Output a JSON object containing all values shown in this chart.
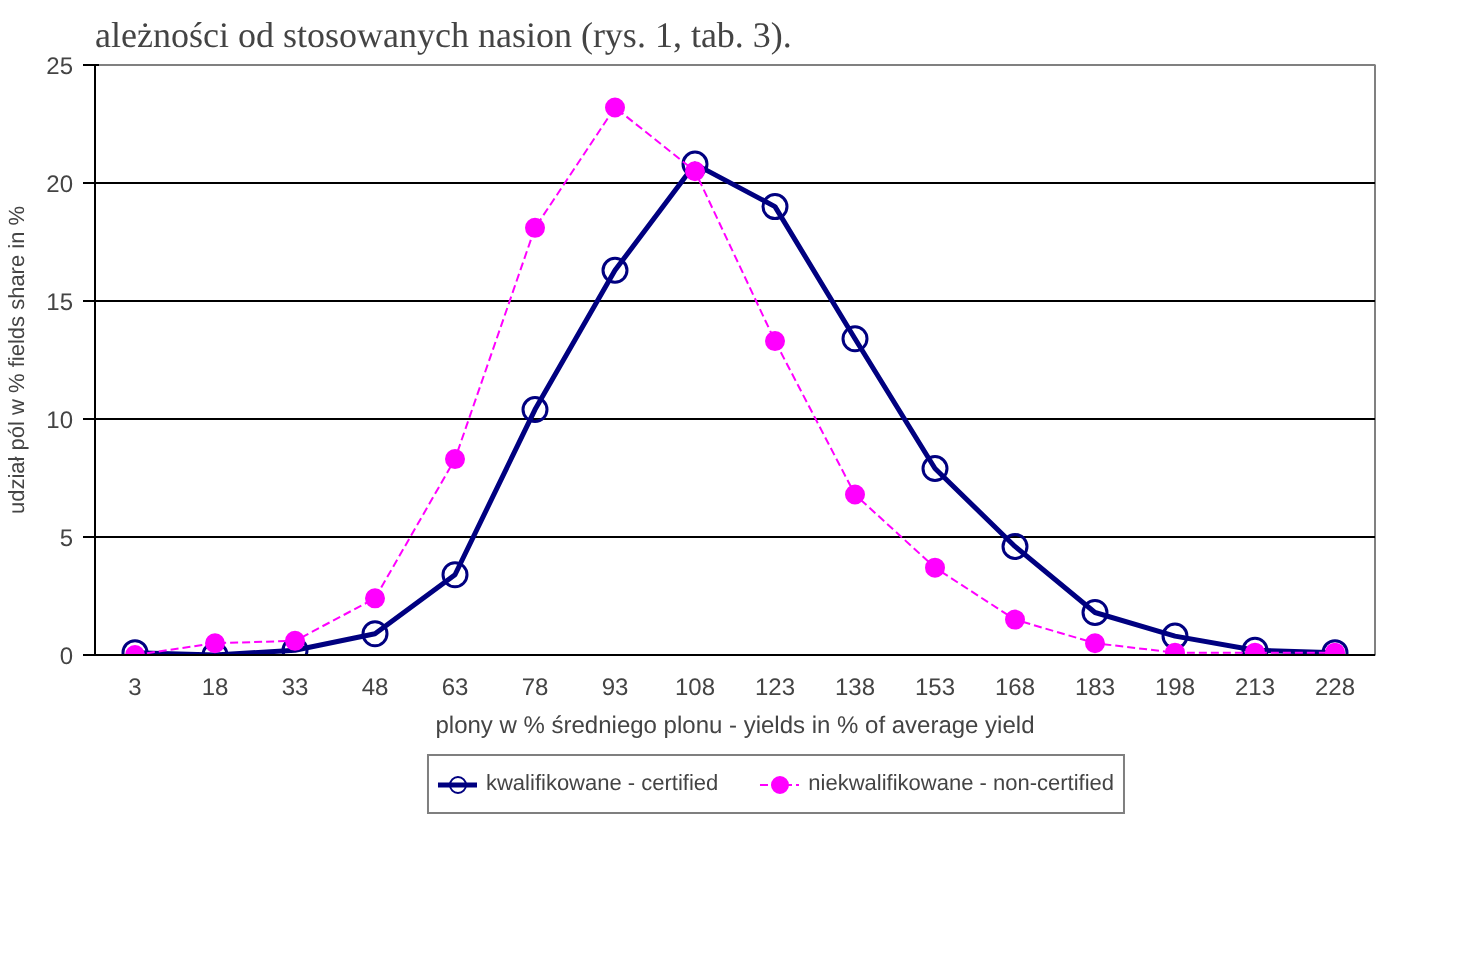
{
  "chart_data": {
    "type": "line",
    "annotations": [
      "ależności od stosowanych nasion (rys. 1, tab. 3)."
    ],
    "xlabel": "plony w % średniego plonu - yields in % of average yield",
    "ylabel": "udział pól w % fields share in %",
    "categories": [
      "3",
      "18",
      "33",
      "48",
      "63",
      "78",
      "93",
      "108",
      "123",
      "138",
      "153",
      "168",
      "183",
      "198",
      "213",
      "228"
    ],
    "series": [
      {
        "name": "kwalifikowane - certified",
        "color": "#000080",
        "marker": "circle_open",
        "line_style": "solid",
        "values": [
          0.1,
          0,
          0.2,
          0.9,
          3.4,
          10.4,
          16.3,
          20.8,
          19.0,
          13.4,
          7.9,
          4.6,
          1.8,
          0.8,
          0.2,
          0.1
        ]
      },
      {
        "name": "niekwalifikowane - non-certified",
        "color": "#ff00ff",
        "marker": "circle",
        "line_style": "dashed",
        "values": [
          0,
          0.5,
          0.6,
          2.4,
          8.3,
          18.1,
          23.2,
          20.5,
          13.3,
          6.8,
          3.7,
          1.5,
          0.5,
          0.1,
          0.1,
          0.1
        ]
      }
    ],
    "ylim": [
      0,
      25
    ],
    "yticks": [
      0,
      5,
      10,
      15,
      20,
      25
    ],
    "grid": "y",
    "legend": "bottom"
  }
}
